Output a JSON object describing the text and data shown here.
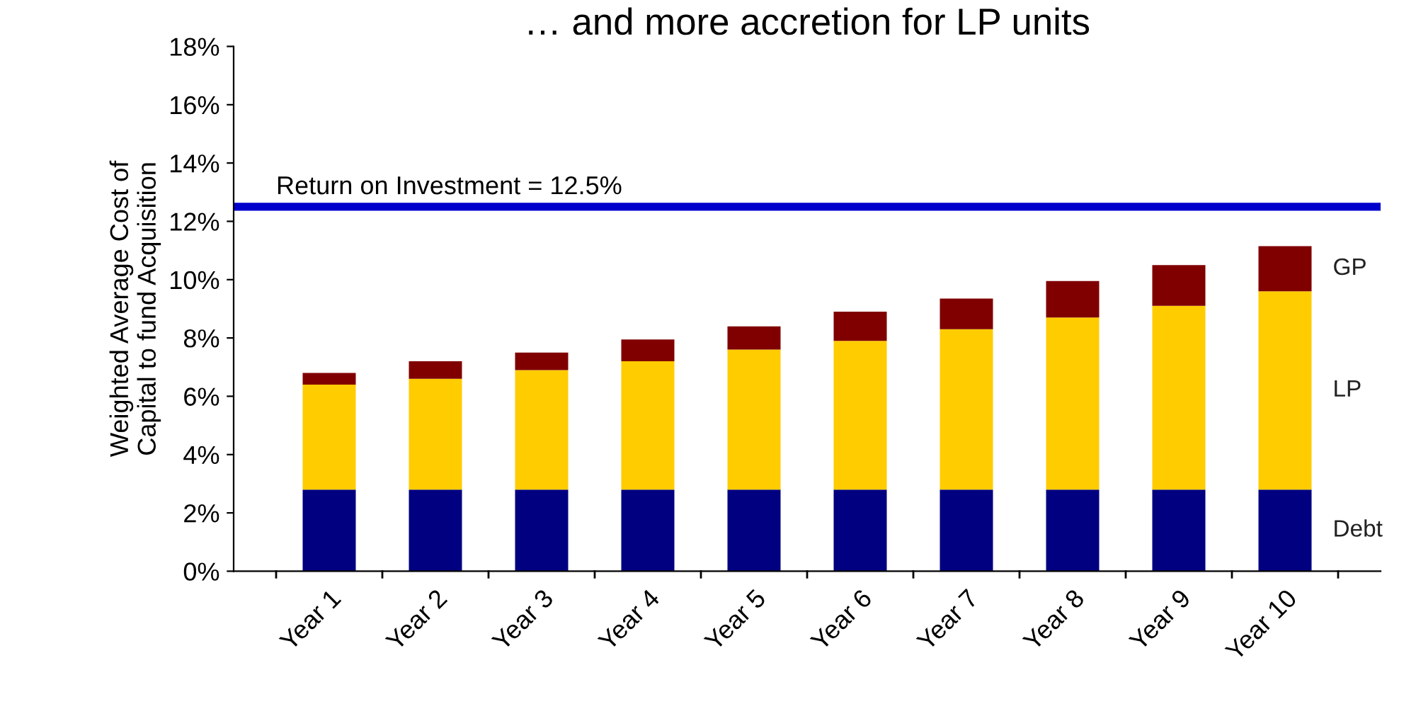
{
  "chart_data": {
    "type": "bar",
    "title": "… and more accretion for LP units",
    "ylabel": "Weighted Average Cost of\nCapital to fund Acquisition",
    "stacked": true,
    "legend": false,
    "grid": false,
    "categories": [
      "Year 1",
      "Year 2",
      "Year 3",
      "Year 4",
      "Year 5",
      "Year 6",
      "Year 7",
      "Year 8",
      "Year 9",
      "Year 10"
    ],
    "series": [
      {
        "name": "Debt",
        "color": "#000080",
        "values": [
          2.8,
          2.8,
          2.8,
          2.8,
          2.8,
          2.8,
          2.8,
          2.8,
          2.8,
          2.8
        ]
      },
      {
        "name": "LP",
        "color": "#ffcc00",
        "values": [
          3.6,
          3.8,
          4.1,
          4.4,
          4.8,
          5.1,
          5.5,
          5.9,
          6.3,
          6.8
        ]
      },
      {
        "name": "GP",
        "color": "#800000",
        "values": [
          0.4,
          0.6,
          0.6,
          0.75,
          0.8,
          1.0,
          1.05,
          1.25,
          1.4,
          1.55
        ]
      }
    ],
    "ylim": [
      0,
      18
    ],
    "yticks": [
      {
        "value": 0,
        "label": "0%"
      },
      {
        "value": 2,
        "label": "2%"
      },
      {
        "value": 4,
        "label": "4%"
      },
      {
        "value": 6,
        "label": "6%"
      },
      {
        "value": 8,
        "label": "8%"
      },
      {
        "value": 10,
        "label": "10%"
      },
      {
        "value": 12,
        "label": "12%"
      },
      {
        "value": 14,
        "label": "14%"
      },
      {
        "value": 16,
        "label": "16%"
      },
      {
        "value": 18,
        "label": "18%"
      }
    ],
    "ref_lines": [
      {
        "axis": "y",
        "value": 12.5,
        "label": "Return on Investment = 12.5%",
        "color": "#0000cc"
      }
    ]
  }
}
